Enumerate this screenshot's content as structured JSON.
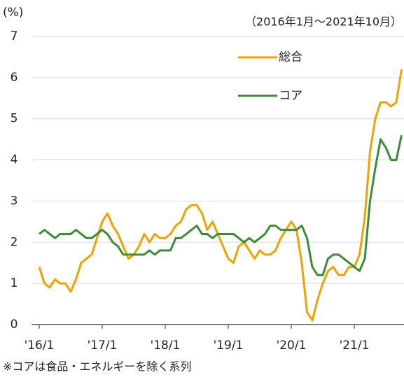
{
  "chart_data": {
    "type": "line",
    "y_unit_label": "(%)",
    "subtitle": "（2016年1月～2021年10月）",
    "footnote": "※コアは食品・エネルギーを除く系列",
    "categories": [
      "'16/1",
      null,
      null,
      null,
      null,
      null,
      null,
      null,
      null,
      null,
      null,
      null,
      "'17/1",
      null,
      null,
      null,
      null,
      null,
      null,
      null,
      null,
      null,
      null,
      null,
      "'18/1",
      null,
      null,
      null,
      null,
      null,
      null,
      null,
      null,
      null,
      null,
      null,
      "'19/1",
      null,
      null,
      null,
      null,
      null,
      null,
      null,
      null,
      null,
      null,
      null,
      "'20/1",
      null,
      null,
      null,
      null,
      null,
      null,
      null,
      null,
      null,
      null,
      null,
      "'21/1",
      null,
      null,
      null,
      null,
      null,
      null,
      null,
      null,
      null
    ],
    "series": [
      {
        "name": "総合",
        "color": "#f2a200",
        "values": [
          1.4,
          1.0,
          0.9,
          1.1,
          1.0,
          1.0,
          0.8,
          1.1,
          1.5,
          1.6,
          1.7,
          2.1,
          2.5,
          2.7,
          2.4,
          2.2,
          1.9,
          1.6,
          1.7,
          1.9,
          2.2,
          2.0,
          2.2,
          2.1,
          2.1,
          2.2,
          2.4,
          2.5,
          2.8,
          2.9,
          2.9,
          2.7,
          2.3,
          2.5,
          2.2,
          1.9,
          1.6,
          1.5,
          1.9,
          2.0,
          1.8,
          1.6,
          1.8,
          1.7,
          1.7,
          1.8,
          2.1,
          2.3,
          2.5,
          2.3,
          1.5,
          0.3,
          0.1,
          0.6,
          1.0,
          1.3,
          1.4,
          1.2,
          1.2,
          1.4,
          1.4,
          1.7,
          2.6,
          4.2,
          5.0,
          5.4,
          5.4,
          5.3,
          5.4,
          6.2
        ]
      },
      {
        "name": "コア",
        "color": "#3d8b37",
        "values": [
          2.2,
          2.3,
          2.2,
          2.1,
          2.2,
          2.2,
          2.2,
          2.3,
          2.2,
          2.1,
          2.1,
          2.2,
          2.3,
          2.2,
          2.0,
          1.9,
          1.7,
          1.7,
          1.7,
          1.7,
          1.7,
          1.8,
          1.7,
          1.8,
          1.8,
          1.8,
          2.1,
          2.1,
          2.2,
          2.3,
          2.4,
          2.2,
          2.2,
          2.1,
          2.2,
          2.2,
          2.2,
          2.2,
          2.1,
          2.0,
          2.1,
          2.0,
          2.1,
          2.2,
          2.4,
          2.4,
          2.3,
          2.3,
          2.3,
          2.3,
          2.4,
          2.1,
          1.4,
          1.2,
          1.2,
          1.6,
          1.7,
          1.7,
          1.6,
          1.5,
          1.4,
          1.3,
          1.6,
          3.0,
          3.8,
          4.5,
          4.3,
          4.0,
          4.0,
          4.6
        ]
      }
    ],
    "ylim": [
      0,
      7
    ],
    "yticks": [
      0,
      1,
      2,
      3,
      4,
      5,
      6,
      7
    ],
    "grid": true
  }
}
